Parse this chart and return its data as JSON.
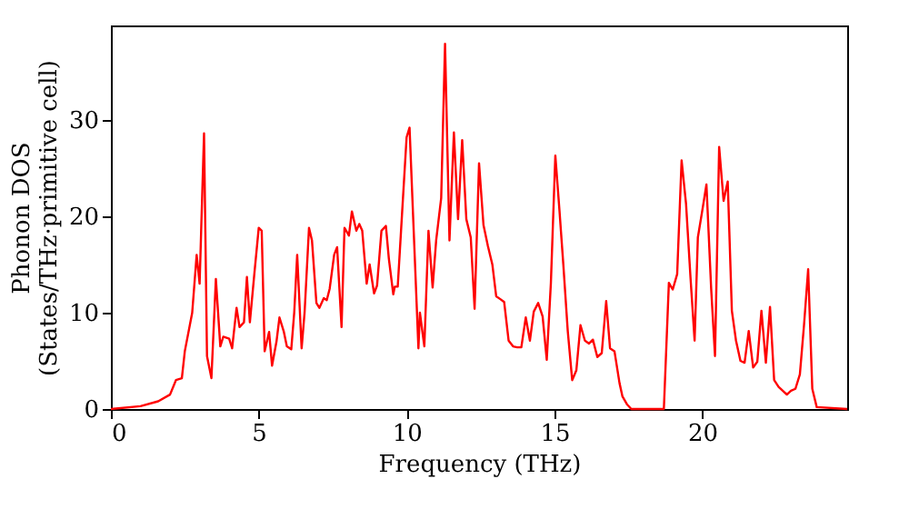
{
  "chart_data": {
    "type": "line",
    "xlabel": "Frequency (THz)",
    "ylabel": "Phonon DOS\n(States/THz·primitive cell)",
    "xlim": [
      0,
      24.9
    ],
    "xticks": [
      0,
      5,
      10,
      15,
      20
    ],
    "ylim": [
      0,
      39.8
    ],
    "yticks": [
      0,
      10,
      20,
      30
    ],
    "grid": false,
    "legend": false,
    "line_style": "solid",
    "series": [
      {
        "color": "#ff0000",
        "x": [
          0,
          1,
          1.6,
          2.0,
          2.2,
          2.4,
          2.5,
          2.75,
          2.9,
          3.0,
          3.15,
          3.25,
          3.4,
          3.55,
          3.7,
          3.8,
          4.0,
          4.1,
          4.25,
          4.35,
          4.5,
          4.6,
          4.7,
          4.85,
          5.0,
          5.1,
          5.2,
          5.35,
          5.45,
          5.6,
          5.7,
          5.85,
          5.95,
          6.1,
          6.2,
          6.3,
          6.45,
          6.55,
          6.7,
          6.8,
          6.95,
          7.05,
          7.2,
          7.3,
          7.4,
          7.55,
          7.65,
          7.8,
          7.9,
          8.05,
          8.15,
          8.3,
          8.4,
          8.5,
          8.65,
          8.75,
          8.9,
          9.0,
          9.15,
          9.3,
          9.4,
          9.55,
          9.6,
          9.7,
          10.0,
          10.1,
          10.4,
          10.45,
          10.6,
          10.74,
          10.88,
          11.0,
          11.17,
          11.3,
          11.45,
          11.6,
          11.74,
          11.88,
          12.02,
          12.17,
          12.3,
          12.45,
          12.6,
          12.75,
          12.9,
          13.03,
          13.17,
          13.3,
          13.45,
          13.6,
          13.74,
          13.88,
          14.03,
          14.17,
          14.3,
          14.45,
          14.6,
          14.74,
          14.88,
          15.03,
          15.17,
          15.3,
          15.45,
          15.6,
          15.74,
          15.88,
          16.03,
          16.17,
          16.3,
          16.45,
          16.6,
          16.75,
          16.88,
          17.03,
          17.2,
          17.3,
          17.45,
          17.6,
          18.7,
          18.87,
          19.0,
          19.15,
          19.3,
          19.45,
          19.6,
          19.74,
          19.85,
          20.0,
          20.14,
          20.3,
          20.43,
          20.57,
          20.72,
          20.86,
          21.0,
          21.14,
          21.29,
          21.43,
          21.57,
          21.72,
          21.86,
          22.0,
          22.15,
          22.29,
          22.43,
          22.58,
          22.72,
          22.86,
          23.0,
          23.15,
          23.3,
          23.44,
          23.58,
          23.72,
          23.87,
          24.9
        ],
        "values": [
          0,
          0.3,
          0.8,
          1.5,
          3,
          3.2,
          6,
          10,
          16,
          13,
          28.6,
          5.5,
          3.2,
          13.5,
          6.5,
          7.5,
          7.3,
          6.3,
          10.5,
          8.5,
          9,
          13.7,
          9,
          14,
          18.8,
          18.5,
          6,
          8,
          4.5,
          7,
          9.5,
          8,
          6.5,
          6.2,
          10,
          16,
          6.3,
          10,
          18.8,
          17.5,
          11,
          10.5,
          11.5,
          11.3,
          12.5,
          16,
          16.8,
          8.5,
          18.8,
          18,
          20.5,
          18.5,
          19.2,
          18.5,
          13,
          15,
          12,
          12.8,
          18.5,
          19,
          15.6,
          11.9,
          12.7,
          12.7,
          28.2,
          29.2,
          6.3,
          10,
          6.5,
          18.5,
          12.6,
          17.5,
          21.9,
          37.9,
          17.5,
          28.7,
          19.7,
          27.9,
          19.7,
          17.8,
          10.4,
          25.5,
          19.1,
          16.9,
          15,
          11.7,
          11.4,
          11.1,
          7.1,
          6.5,
          6.4,
          6.4,
          9.5,
          7.1,
          10.1,
          11,
          9.6,
          5.1,
          13.1,
          26.3,
          20.6,
          15,
          8.1,
          3.0,
          4,
          8.7,
          7.1,
          6.8,
          7.2,
          5.4,
          5.8,
          11.2,
          6.3,
          6,
          2.7,
          1.3,
          0.5,
          0,
          0,
          13.1,
          12.4,
          14,
          25.8,
          21.3,
          13.7,
          7.1,
          17.8,
          20.6,
          23.3,
          12.5,
          5.5,
          27.2,
          21.6,
          23.6,
          10.2,
          7.1,
          5.0,
          4.8,
          8.1,
          4.3,
          4.9,
          10.2,
          4.8,
          10.6,
          3,
          2.3,
          1.9,
          1.5,
          1.9,
          2.1,
          3.6,
          8.7,
          14.5,
          2.1,
          0.2,
          0
        ]
      }
    ]
  }
}
